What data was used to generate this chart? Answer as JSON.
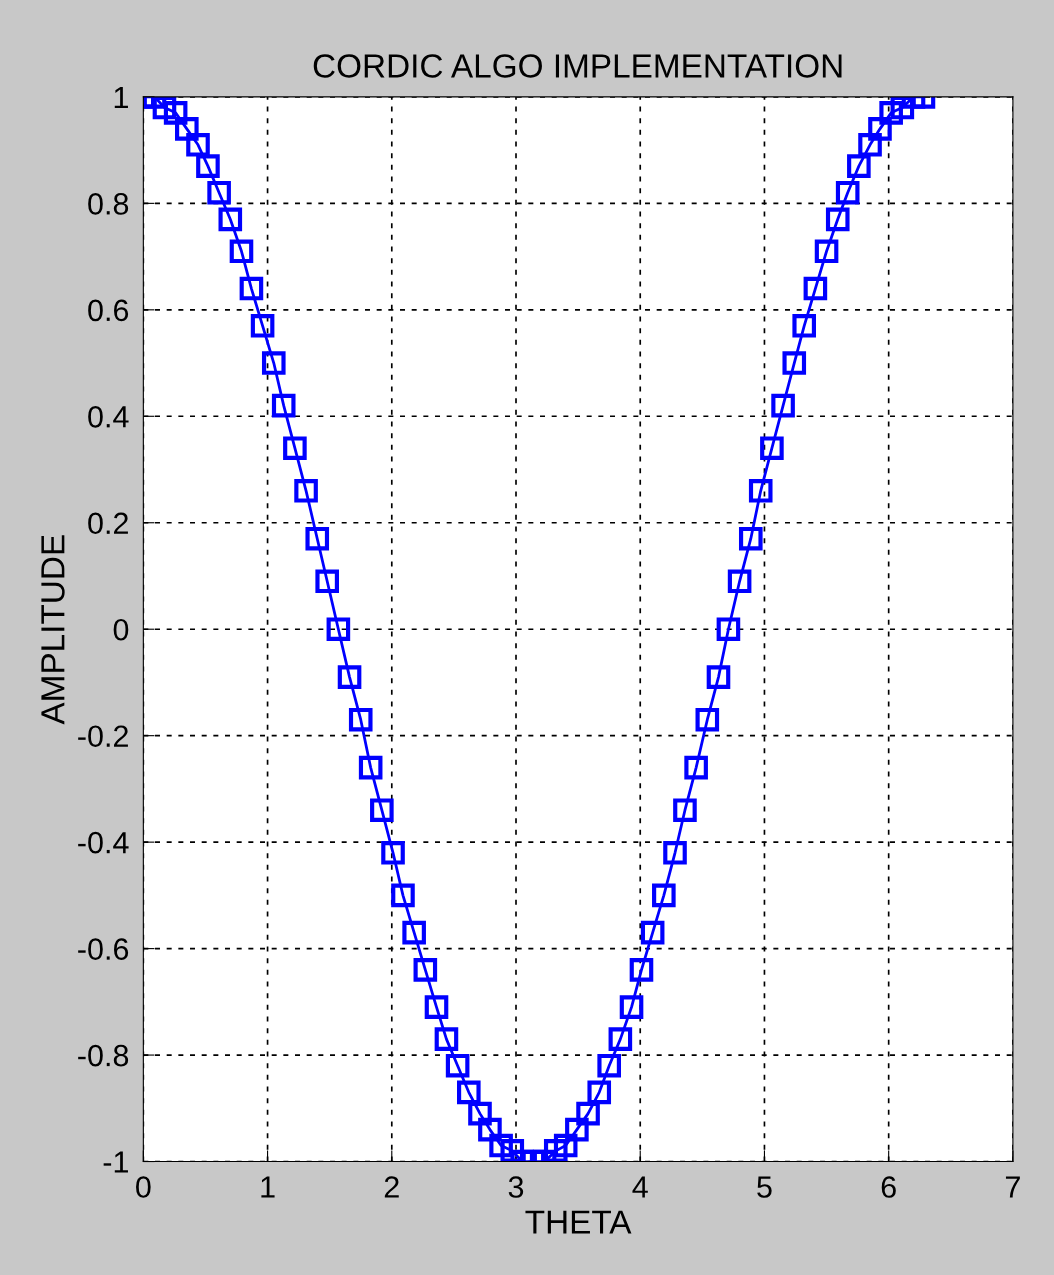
{
  "chart_data": {
    "type": "line",
    "title": "CORDIC ALGO IMPLEMENTATION",
    "xlabel": "THETA",
    "ylabel": "AMPLITUDE",
    "x": [
      0,
      0.09,
      0.17,
      0.26,
      0.35,
      0.44,
      0.52,
      0.61,
      0.7,
      0.79,
      0.87,
      0.96,
      1.05,
      1.13,
      1.22,
      1.31,
      1.4,
      1.48,
      1.57,
      1.66,
      1.75,
      1.83,
      1.92,
      2.01,
      2.09,
      2.18,
      2.27,
      2.36,
      2.44,
      2.53,
      2.62,
      2.71,
      2.79,
      2.88,
      2.97,
      3.05,
      3.14,
      3.23,
      3.32,
      3.4,
      3.49,
      3.58,
      3.67,
      3.75,
      3.84,
      3.93,
      4.01,
      4.1,
      4.19,
      4.28,
      4.36,
      4.45,
      4.54,
      4.63,
      4.71,
      4.8,
      4.89,
      4.97,
      5.06,
      5.15,
      5.24,
      5.32,
      5.41,
      5.5,
      5.59,
      5.67,
      5.76,
      5.85,
      5.93,
      6.02,
      6.11,
      6.2,
      6.28
    ],
    "series": [
      {
        "color": "#0000ff",
        "values": [
          1,
          1.0,
          0.98,
          0.97,
          0.94,
          0.91,
          0.87,
          0.82,
          0.77,
          0.71,
          0.64,
          0.57,
          0.5,
          0.42,
          0.34,
          0.26,
          0.17,
          0.09,
          0.0,
          -0.09,
          -0.17,
          -0.26,
          -0.34,
          -0.42,
          -0.5,
          -0.57,
          -0.64,
          -0.71,
          -0.77,
          -0.82,
          -0.87,
          -0.91,
          -0.94,
          -0.97,
          -0.98,
          -1.0,
          -1.0,
          -1.0,
          -0.98,
          -0.97,
          -0.94,
          -0.91,
          -0.87,
          -0.82,
          -0.77,
          -0.71,
          -0.64,
          -0.57,
          -0.5,
          -0.42,
          -0.34,
          -0.26,
          -0.17,
          -0.09,
          0.0,
          0.09,
          0.17,
          0.26,
          0.34,
          0.42,
          0.5,
          0.57,
          0.64,
          0.71,
          0.77,
          0.82,
          0.87,
          0.91,
          0.94,
          0.97,
          0.98,
          1.0,
          1.0
        ]
      }
    ],
    "xlim": [
      0,
      7
    ],
    "xticks": [
      0,
      1,
      2,
      3,
      4,
      5,
      6,
      7
    ],
    "ylim": [
      -1,
      1
    ],
    "yticks": [
      -1,
      -0.8,
      -0.6,
      -0.4,
      -0.2,
      0,
      0.2,
      0.4,
      0.6,
      0.8,
      1
    ],
    "grid": true,
    "marker": "square",
    "line_style": "solid"
  }
}
